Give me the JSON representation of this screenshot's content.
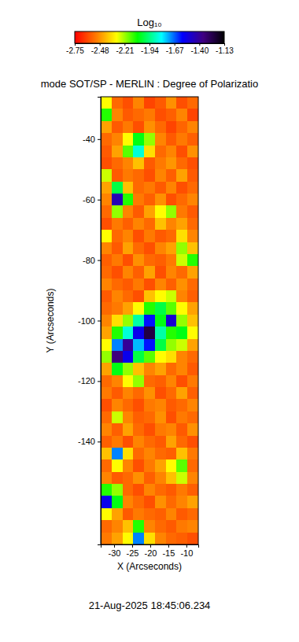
{
  "chart_data": {
    "type": "heatmap",
    "title": "mode SOT/SP - MERLIN : Degree of Polarizatio",
    "x_label": "X (Arcseconds)",
    "y_label": "Y (Arcseconds)",
    "annotations": [
      "21-Aug-2025 18:45:06.234"
    ],
    "xlim": [
      -33.7,
      -6.7
    ],
    "ylim": [
      -174,
      -26
    ],
    "xticks": [
      -30,
      -25,
      -20,
      -15,
      -10
    ],
    "yticks": [
      -140,
      -120,
      -100,
      -80,
      -60,
      -40
    ],
    "colorbar_title": "Log₁₀",
    "colorbar_range": [
      -2.75,
      -1.13
    ],
    "colorbar_ticks": [
      -2.75,
      -2.48,
      -2.21,
      -1.94,
      -1.67,
      {
        "value": -1.4,
        "label": "-1.40"
      },
      -1.13
    ],
    "x": [
      -32.2,
      -29.2,
      -26.2,
      -23.2,
      -20.2,
      -17.2,
      -14.2,
      -11.2,
      -8.2
    ],
    "y": [
      -28,
      -32,
      -36,
      -40,
      -44,
      -48,
      -52,
      -56,
      -60,
      -64,
      -68,
      -72,
      -76,
      -80,
      -84,
      -88,
      -92,
      -96,
      -100,
      -104,
      -108,
      -112,
      -116,
      -120,
      -124,
      -128,
      -132,
      -136,
      -140,
      -144,
      -148,
      -152,
      -156,
      -160,
      -164,
      -168,
      -172
    ],
    "values": [
      [
        -2.3,
        -2.55,
        -2.6,
        -2.5,
        -2.62,
        -2.58,
        -2.48,
        -2.6,
        -2.55
      ],
      [
        -2.1,
        -2.5,
        -2.58,
        -2.55,
        -2.52,
        -2.6,
        -2.57,
        -2.5,
        -2.62
      ],
      [
        -2.45,
        -2.58,
        -2.52,
        -2.6,
        -2.48,
        -2.55,
        -2.62,
        -2.56,
        -2.5
      ],
      [
        -2.55,
        -2.5,
        -2.3,
        -2.05,
        -2.2,
        -2.5,
        -2.58,
        -2.52,
        -2.57
      ],
      [
        -2.58,
        -2.45,
        -2.15,
        -1.85,
        -2.35,
        -2.55,
        -2.5,
        -2.6,
        -2.48
      ],
      [
        -2.6,
        -2.55,
        -2.5,
        -2.4,
        -2.58,
        -2.52,
        -2.47,
        -2.55,
        -2.6
      ],
      [
        -2.25,
        -2.58,
        -2.52,
        -2.55,
        -2.6,
        -2.5,
        -2.57,
        -2.45,
        -2.58
      ],
      [
        -2.45,
        -2.0,
        -2.4,
        -2.55,
        -2.52,
        -2.58,
        -2.5,
        -2.6,
        -2.55
      ],
      [
        -2.5,
        -1.45,
        -2.1,
        -2.52,
        -2.57,
        -2.48,
        -2.6,
        -2.55,
        -2.5
      ],
      [
        -2.55,
        -2.2,
        -2.5,
        -2.58,
        -2.45,
        -2.3,
        -2.2,
        -2.52,
        -2.58
      ],
      [
        -2.6,
        -2.52,
        -2.57,
        -2.5,
        -2.55,
        -2.4,
        -2.5,
        -2.45,
        -2.55
      ],
      [
        -2.3,
        -2.55,
        -2.5,
        -2.6,
        -2.52,
        -2.58,
        -2.55,
        -2.35,
        -2.5
      ],
      [
        -2.5,
        -2.58,
        -2.45,
        -2.55,
        -2.6,
        -2.5,
        -2.45,
        -2.2,
        -2.4
      ],
      [
        -2.57,
        -2.52,
        -2.6,
        -2.48,
        -2.55,
        -2.57,
        -2.52,
        -2.25,
        -2.1
      ],
      [
        -2.55,
        -2.6,
        -2.5,
        -2.57,
        -2.45,
        -2.6,
        -2.5,
        -2.55,
        -2.45
      ],
      [
        -2.5,
        -2.55,
        -2.58,
        -2.52,
        -2.6,
        -2.5,
        -2.57,
        -2.48,
        -2.55
      ],
      [
        -2.58,
        -2.5,
        -2.55,
        -2.6,
        -2.4,
        -2.3,
        -2.25,
        -2.5,
        -2.57
      ],
      [
        -2.55,
        -2.52,
        -2.45,
        -2.3,
        -2.1,
        -2.0,
        -2.15,
        -2.3,
        -2.45
      ],
      [
        -2.5,
        -2.35,
        -2.2,
        -1.9,
        -1.6,
        -2.05,
        -1.5,
        -2.2,
        -2.4
      ],
      [
        -2.45,
        -2.1,
        -1.85,
        -1.55,
        -1.25,
        -1.9,
        -2.1,
        -2.05,
        -2.3
      ],
      [
        -2.3,
        -1.7,
        -1.4,
        -1.75,
        -1.6,
        -2.0,
        -2.2,
        -2.25,
        -2.45
      ],
      [
        -2.2,
        -1.35,
        -1.55,
        -2.0,
        -2.15,
        -2.3,
        -2.35,
        -2.5,
        -2.55
      ],
      [
        -2.45,
        -2.05,
        -2.2,
        -2.4,
        -2.5,
        -2.45,
        -2.55,
        -2.5,
        -2.58
      ],
      [
        -2.55,
        -2.5,
        -2.3,
        -2.2,
        -2.55,
        -2.57,
        -2.5,
        -2.6,
        -2.52
      ],
      [
        -2.52,
        -2.58,
        -2.5,
        -2.55,
        -2.48,
        -2.6,
        -2.55,
        -2.45,
        -2.57
      ],
      [
        -2.6,
        -2.5,
        -2.55,
        -2.6,
        -2.52,
        -2.5,
        -2.58,
        -2.55,
        -2.5
      ],
      [
        -2.55,
        -2.25,
        -2.5,
        -2.57,
        -2.55,
        -2.48,
        -2.6,
        -2.52,
        -2.55
      ],
      [
        -2.5,
        -2.57,
        -2.45,
        -2.55,
        -2.6,
        -2.52,
        -2.5,
        -2.58,
        -2.48
      ],
      [
        -2.57,
        -2.52,
        -2.6,
        -2.5,
        -2.55,
        -2.58,
        -2.45,
        -2.55,
        -2.6
      ],
      [
        -2.4,
        -1.7,
        -2.35,
        -2.55,
        -2.5,
        -2.55,
        -2.57,
        -2.4,
        -2.52
      ],
      [
        -2.55,
        -2.3,
        -2.5,
        -2.6,
        -2.52,
        -2.45,
        -2.3,
        -2.15,
        -2.55
      ],
      [
        -2.5,
        -2.58,
        -2.55,
        -2.48,
        -2.57,
        -2.5,
        -2.4,
        -2.25,
        -2.5
      ],
      [
        -2.1,
        -2.2,
        -2.55,
        -2.6,
        -2.5,
        -2.55,
        -2.58,
        -2.52,
        -2.57
      ],
      [
        -1.55,
        -2.05,
        -2.5,
        -2.55,
        -2.6,
        -2.48,
        -2.55,
        -2.5,
        -2.45
      ],
      [
        -2.3,
        -2.45,
        -2.58,
        -2.52,
        -2.55,
        -2.57,
        -2.5,
        -2.58,
        -2.55
      ],
      [
        -2.55,
        -2.5,
        -2.4,
        -2.1,
        -2.5,
        -2.55,
        -2.58,
        -2.52,
        -2.5
      ],
      [
        -2.52,
        -2.45,
        -2.3,
        -1.7,
        -2.35,
        -2.5,
        -2.55,
        -2.57,
        -2.6
      ]
    ]
  }
}
